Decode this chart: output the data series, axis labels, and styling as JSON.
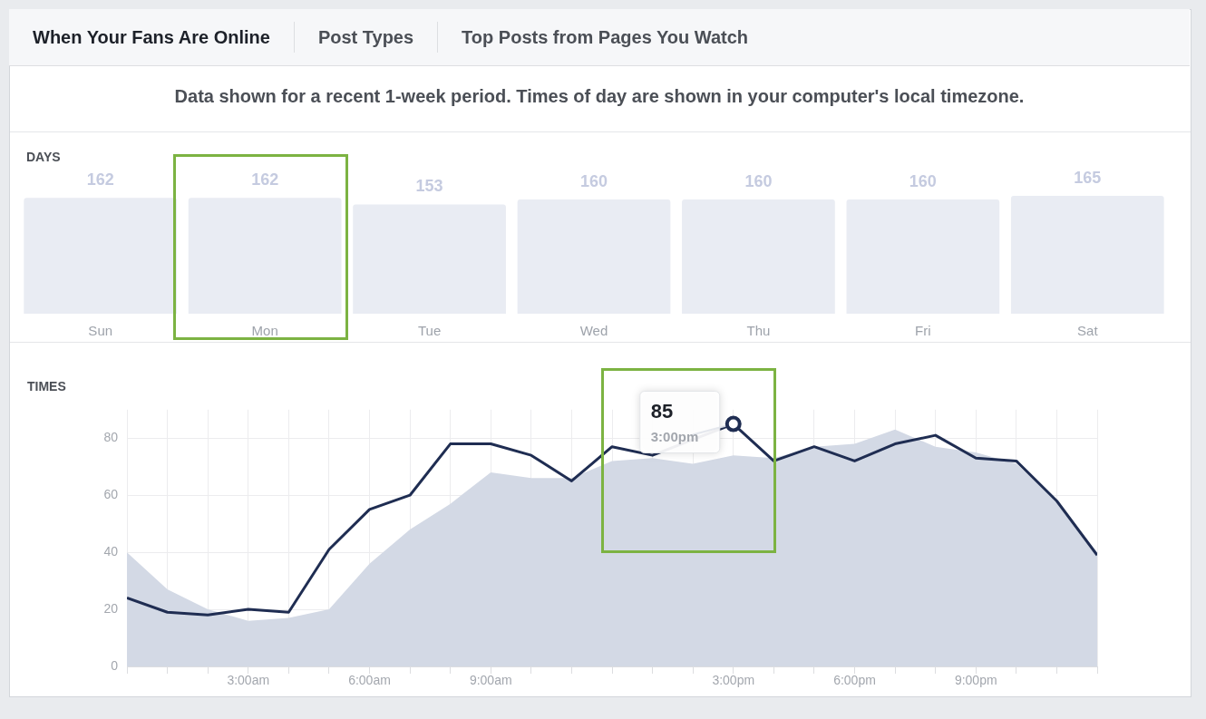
{
  "chart_data": [
    {
      "type": "bar",
      "title": "DAYS",
      "subtitle": "Data shown for a recent 1-week period. Times of day are shown in your computer's local timezone.",
      "annotations": [
        "When Your Fans Are Online",
        "Post Types",
        "Top Posts from Pages You Watch"
      ],
      "categories": [
        "Sun",
        "Mon",
        "Tue",
        "Wed",
        "Thu",
        "Fri",
        "Sat"
      ],
      "values": [
        162,
        162,
        153,
        160,
        160,
        160,
        165
      ],
      "color": "#e9ecf3",
      "data_labels": true,
      "tick_labels": "x",
      "grid": false,
      "legend": false
    },
    {
      "type": "line",
      "title": "TIMES",
      "legend": false,
      "grid": true,
      "marker": "none",
      "line_style": "solid",
      "xlim": [
        0,
        24
      ],
      "ylim": [
        0,
        90
      ],
      "yticks": [
        0,
        20,
        40,
        60,
        80
      ],
      "xticks": [
        {
          "value": 0,
          "label": null
        },
        {
          "value": 1,
          "label": null
        },
        {
          "value": 2,
          "label": null
        },
        {
          "value": 3,
          "label": "3:00am"
        },
        {
          "value": 4,
          "label": null
        },
        {
          "value": 5,
          "label": null
        },
        {
          "value": 6,
          "label": "6:00am"
        },
        {
          "value": 7,
          "label": null
        },
        {
          "value": 8,
          "label": null
        },
        {
          "value": 9,
          "label": "9:00am"
        },
        {
          "value": 10,
          "label": null
        },
        {
          "value": 11,
          "label": null
        },
        {
          "value": 12,
          "label": null
        },
        {
          "value": 13,
          "label": null
        },
        {
          "value": 14,
          "label": null
        },
        {
          "value": 15,
          "label": "3:00pm"
        },
        {
          "value": 16,
          "label": null
        },
        {
          "value": 17,
          "label": null
        },
        {
          "value": 18,
          "label": "6:00pm"
        },
        {
          "value": 19,
          "label": null
        },
        {
          "value": 20,
          "label": null
        },
        {
          "value": 21,
          "label": "9:00pm"
        },
        {
          "value": 22,
          "label": null
        },
        {
          "value": 23,
          "label": null
        },
        {
          "value": 24,
          "label": null
        }
      ],
      "x": [
        0,
        1,
        2,
        3,
        4,
        5,
        6,
        7,
        8,
        9,
        10,
        11,
        12,
        13,
        14,
        15,
        16,
        17,
        18,
        19,
        20,
        21,
        22,
        23,
        24
      ],
      "series": [
        {
          "type": "area",
          "color": "#d3d9e5",
          "values": [
            40,
            27,
            20,
            16,
            17,
            20,
            36,
            48,
            57,
            68,
            66,
            66,
            72,
            73,
            71,
            74,
            73,
            77,
            78,
            83,
            77,
            75,
            71,
            58,
            40
          ]
        },
        {
          "type": "line",
          "color": "#1f2d52",
          "values": [
            24,
            19,
            18,
            20,
            19,
            41,
            55,
            60,
            78,
            78,
            74,
            65,
            77,
            74,
            null,
            85,
            72,
            77,
            72,
            78,
            81,
            73,
            72,
            58,
            39
          ]
        }
      ],
      "annotations": [
        {
          "text": "85",
          "x": 15,
          "y": 85
        },
        {
          "text": "3:00pm",
          "x": 15,
          "y": 85
        }
      ]
    }
  ]
}
